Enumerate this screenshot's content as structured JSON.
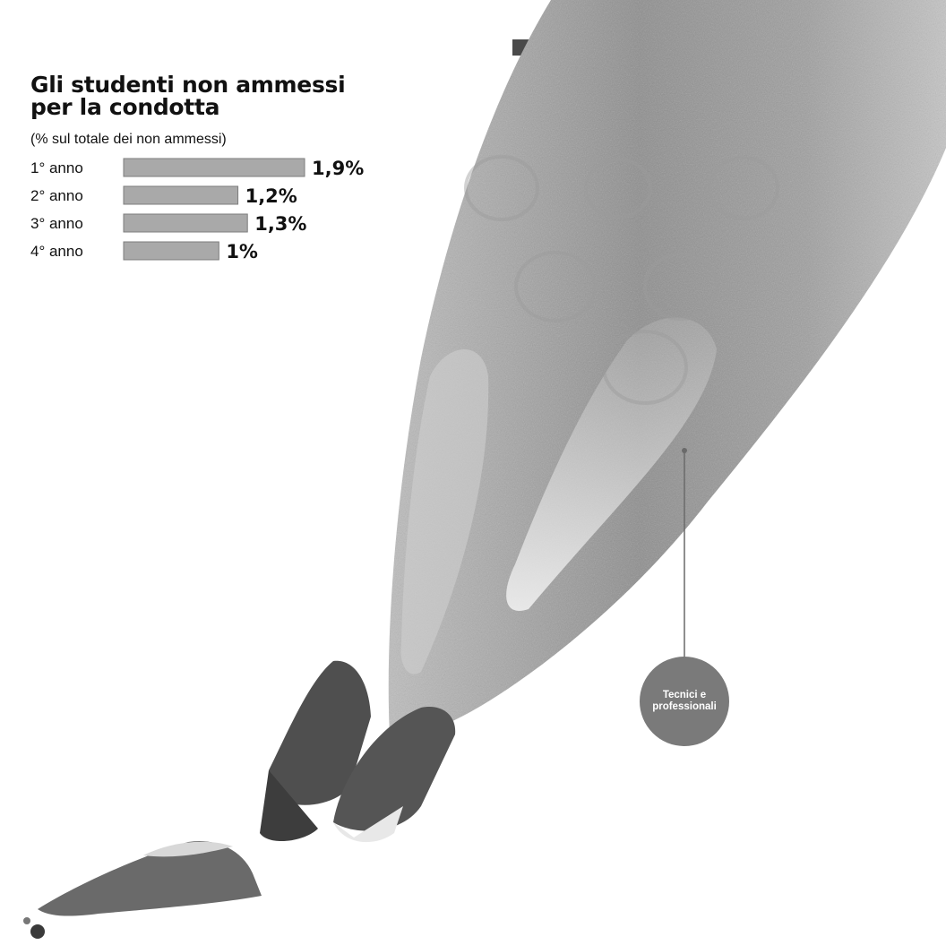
{
  "chart_data": {
    "type": "bar",
    "orientation": "horizontal",
    "title": "Gli studenti non ammessi per la condotta",
    "subtitle": "(% sul totale dei non ammessi)",
    "categories": [
      "1° anno",
      "2° anno",
      "3° anno",
      "4° anno"
    ],
    "values": [
      1.9,
      1.2,
      1.3,
      1.0
    ],
    "value_labels": [
      "1,9%",
      "1,2%",
      "1,3%",
      "1%"
    ],
    "unit": "%",
    "bar_color": "#a9a9a9"
  },
  "illustration": {
    "circle_label": "Tecnici e professionali",
    "circle_color": "#7a7a7a"
  }
}
